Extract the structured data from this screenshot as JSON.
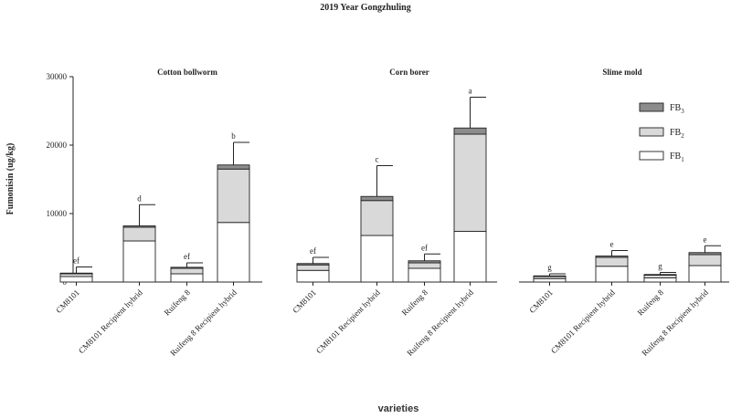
{
  "chart_data": {
    "type": "bar",
    "stacked": true,
    "title": "2019 Year Gongzhuling",
    "xlabel": "varieties",
    "ylabel": "Fumonisin (ug/kg)",
    "ylim": [
      0,
      30000
    ],
    "yticks": [
      "0",
      "10000",
      "20000",
      "30000"
    ],
    "ytick_values": [
      0,
      10000,
      20000,
      30000
    ],
    "grid": false,
    "legend_position": "right",
    "legend": [
      {
        "key": "FB3",
        "label": "FB",
        "sub": "3",
        "color": "#8c8c8c"
      },
      {
        "key": "FB2",
        "label": "FB",
        "sub": "2",
        "color": "#d9d9d9"
      },
      {
        "key": "FB1",
        "label": "FB",
        "sub": "1",
        "color": "#ffffff"
      }
    ],
    "groups": [
      {
        "name": "Cotton bollworm",
        "categories": [
          "CM8101",
          "CM8101 Recipient hybrid",
          "Ruifeng 8",
          "Ruifeng 8 Recipient hybrid"
        ],
        "FB1": [
          800,
          6000,
          1200,
          8700
        ],
        "FB2": [
          400,
          2000,
          800,
          7800
        ],
        "FB3": [
          100,
          200,
          150,
          600
        ],
        "error": [
          900,
          3100,
          650,
          3300
        ],
        "letters": [
          "ef",
          "d",
          "ef",
          "b"
        ]
      },
      {
        "name": "Corn borer",
        "categories": [
          "CM8101",
          "CM8101 Recipient hybrid",
          "Ruifeng 8",
          "Ruifeng 8 Recipient hybrid"
        ],
        "FB1": [
          1700,
          6800,
          2000,
          7400
        ],
        "FB2": [
          800,
          5100,
          800,
          14200
        ],
        "FB3": [
          200,
          600,
          300,
          900
        ],
        "error": [
          900,
          4500,
          1000,
          4500
        ],
        "letters": [
          "ef",
          "c",
          "ef",
          "a"
        ]
      },
      {
        "name": "Slime mold",
        "categories": [
          "CM8101",
          "CM8101 Recipient hybrid",
          "Ruifeng 8",
          "Ruifeng 8 Recipient hybrid"
        ],
        "FB1": [
          500,
          2300,
          600,
          2400
        ],
        "FB2": [
          300,
          1300,
          400,
          1600
        ],
        "FB3": [
          100,
          200,
          100,
          300
        ],
        "error": [
          300,
          800,
          300,
          1000
        ],
        "letters": [
          "g",
          "e",
          "g",
          "e"
        ]
      }
    ]
  }
}
